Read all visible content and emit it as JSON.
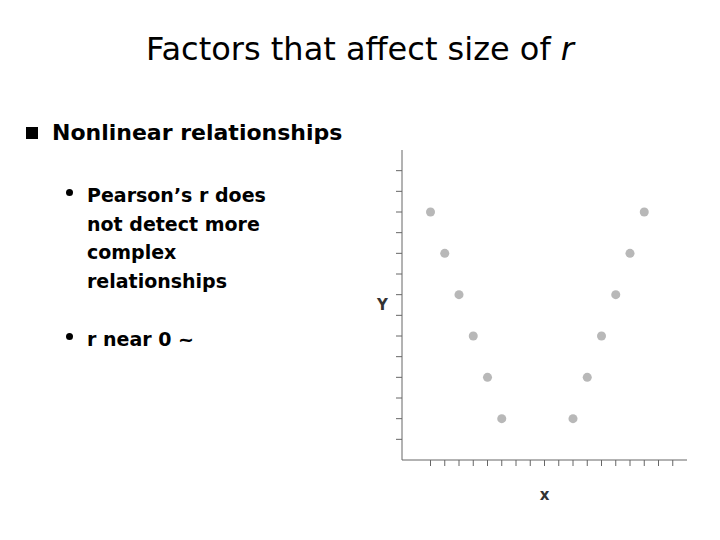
{
  "chart_data": {
    "type": "scatter",
    "title": "Factors that affect size of r",
    "annotations": [
      "Nonlinear relationships",
      "Pearson’s r does not detect more complex relationships",
      "r near 0 ~"
    ],
    "x": [
      1.5,
      2.0,
      2.5,
      3.0,
      3.5,
      4.0,
      6.5,
      7.0,
      7.5,
      8.0,
      8.5,
      9.0
    ],
    "values": [
      8.5,
      7.5,
      6.5,
      5.5,
      4.5,
      3.5,
      3.5,
      4.5,
      5.5,
      6.5,
      7.5,
      8.5
    ],
    "color": "#b8b8b8",
    "x_label": "x",
    "y_label": "Y",
    "xlim": [
      0.5,
      10.5
    ],
    "ylim": [
      2.5,
      10.0
    ],
    "xticks": [
      1.5,
      2.0,
      2.5,
      3.0,
      3.5,
      4.0,
      4.5,
      5.0,
      5.5,
      6.0,
      6.5,
      7.0,
      7.5,
      8.0,
      8.5,
      9.0,
      9.5,
      10.0
    ],
    "yticks": [
      3.0,
      3.5,
      4.0,
      4.5,
      5.0,
      5.5,
      6.0,
      6.5,
      7.0,
      7.5,
      8.0,
      8.5,
      9.0,
      9.5
    ],
    "tick_labels": false,
    "grid": false
  }
}
